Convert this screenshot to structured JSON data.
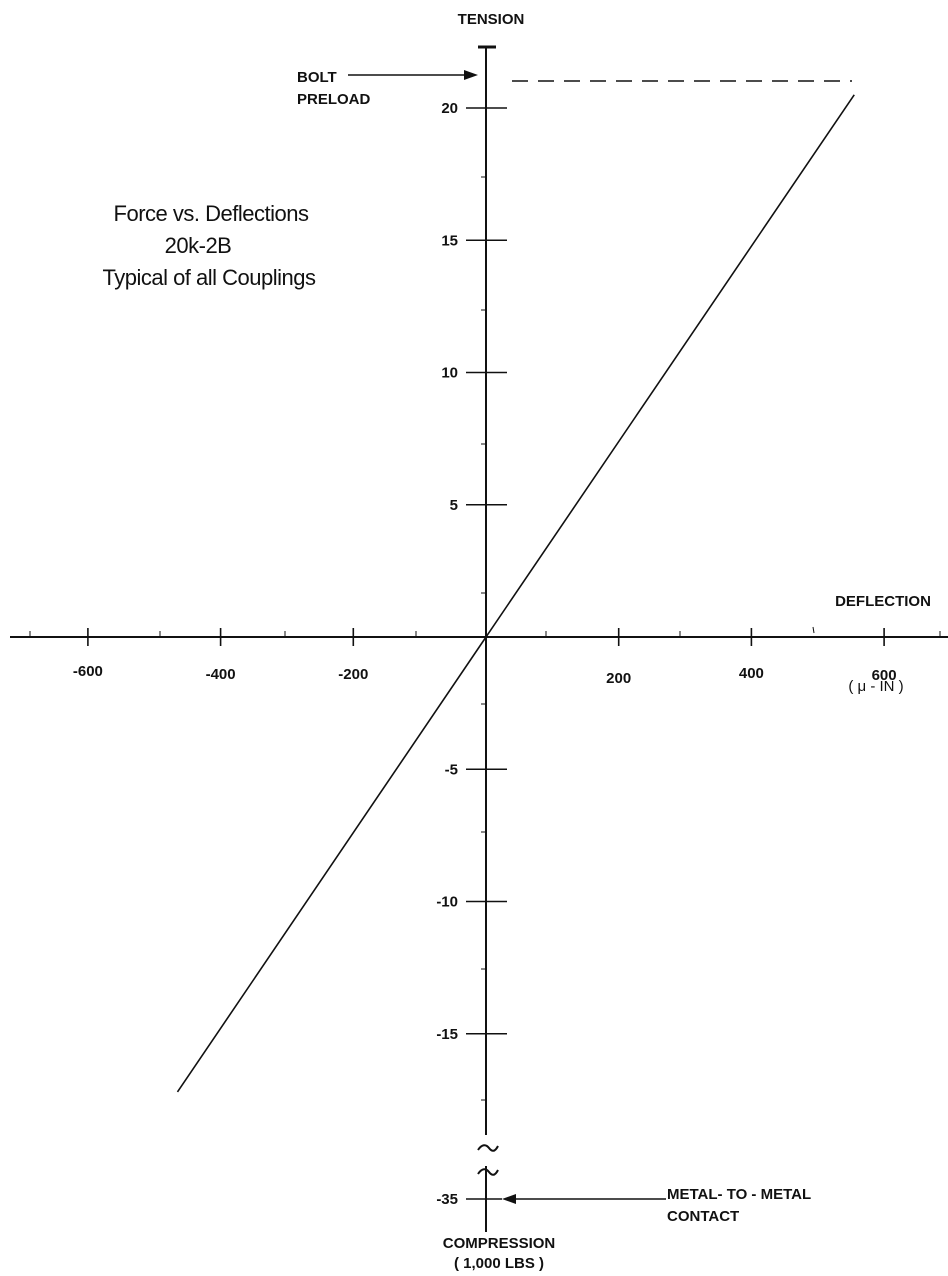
{
  "chart_data": {
    "type": "line",
    "title": [
      "Force vs. Deflections",
      "20k-2B",
      "Typical of all Couplings"
    ],
    "xlabel": "DEFLECTION",
    "xunit": "( μ - IN )",
    "ylabel_top": "TENSION",
    "ylabel_bottom": [
      "COMPRESSION",
      "( 1,000 LBS )"
    ],
    "x_ticks": [
      -600,
      -400,
      -200,
      200,
      400,
      600
    ],
    "y_ticks": [
      20,
      15,
      10,
      5,
      -5,
      -10,
      -15,
      -35
    ],
    "xlim": [
      -720,
      700
    ],
    "ylim": [
      -35.5,
      22.4
    ],
    "axis_break": {
      "from": -18,
      "to": -35
    },
    "series": [
      {
        "x": [
          -465,
          0,
          555
        ],
        "y": [
          -17.2,
          0,
          20.5
        ]
      }
    ],
    "annotations": {
      "bolt_preload": {
        "label": [
          "BOLT",
          "PRELOAD"
        ],
        "value": 21
      },
      "metal_contact": {
        "label": [
          "METAL- TO - METAL",
          "CONTACT"
        ],
        "value": -35
      }
    },
    "grid": false
  }
}
